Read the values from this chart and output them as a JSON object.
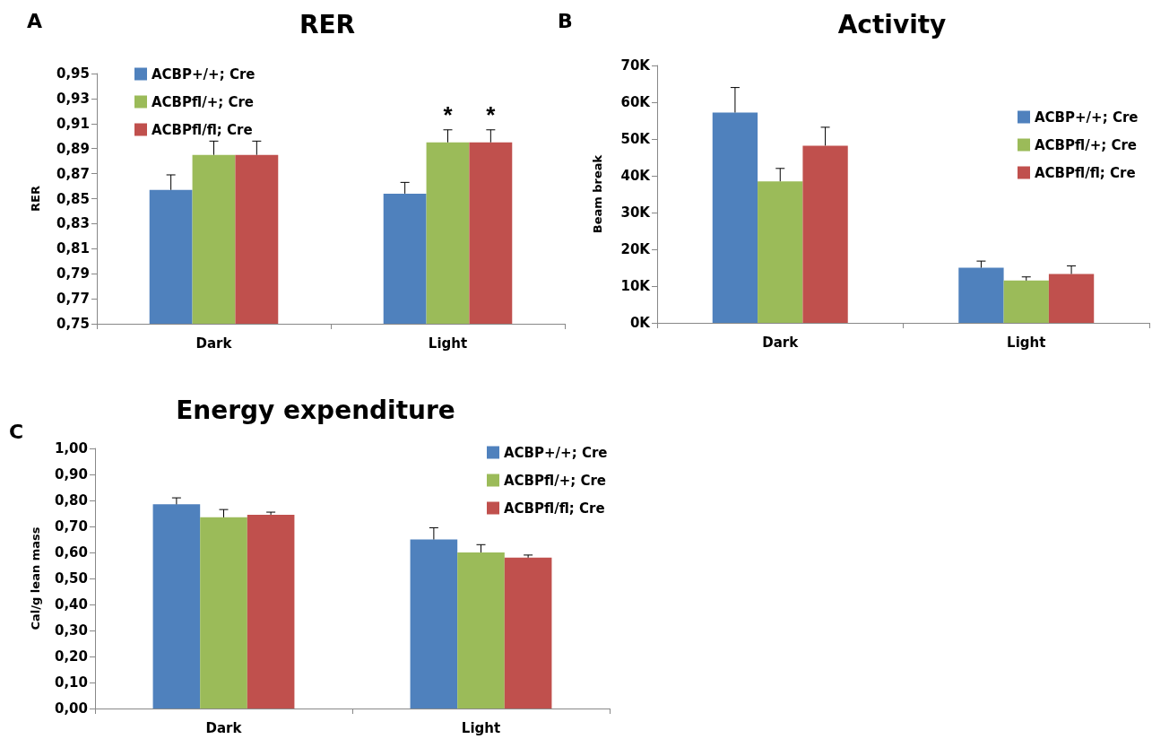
{
  "chart_data": [
    {
      "type": "bar",
      "title": "RER",
      "ylabel": "RER",
      "annotations": [
        "A"
      ],
      "categories": [
        "Dark",
        "Light"
      ],
      "legend": "top left",
      "grid": false,
      "ylim": [
        0.75,
        0.95
      ],
      "yticks": [
        {
          "value": 0.75,
          "label": "0,75"
        },
        {
          "value": 0.77,
          "label": "0,77"
        },
        {
          "value": 0.79,
          "label": "0,79"
        },
        {
          "value": 0.81,
          "label": "0,81"
        },
        {
          "value": 0.83,
          "label": "0,83"
        },
        {
          "value": 0.85,
          "label": "0,85"
        },
        {
          "value": 0.87,
          "label": "0,87"
        },
        {
          "value": 0.89,
          "label": "0,89"
        },
        {
          "value": 0.91,
          "label": "0,91"
        },
        {
          "value": 0.93,
          "label": "0,93"
        },
        {
          "value": 0.95,
          "label": "0,95"
        }
      ],
      "series": [
        {
          "name": "ACBP+/+; Cre",
          "color": "#4f81bd",
          "values": [
            0.857,
            0.854
          ],
          "errors": [
            [
              0.857,
              0.869
            ],
            [
              0.854,
              0.863
            ]
          ]
        },
        {
          "name": "ACBPfl/+; Cre",
          "color": "#9bbb59",
          "values": [
            0.885,
            0.895
          ],
          "errors": [
            [
              0.885,
              0.896
            ],
            [
              0.895,
              0.905
            ]
          ],
          "value_labels": [
            null,
            "*"
          ]
        },
        {
          "name": "ACBPfl/fl; Cre",
          "color": "#c0504d",
          "values": [
            0.885,
            0.895
          ],
          "errors": [
            [
              0.885,
              0.896
            ],
            [
              0.895,
              0.905
            ]
          ],
          "value_labels": [
            null,
            "*"
          ]
        }
      ]
    },
    {
      "type": "bar",
      "title": "Activity",
      "ylabel": "Beam break",
      "annotations": [
        "B"
      ],
      "categories": [
        "Dark",
        "Light"
      ],
      "legend": "right",
      "grid": false,
      "ylim": [
        0,
        70000
      ],
      "yticks": [
        {
          "value": 0,
          "label": "0K"
        },
        {
          "value": 10000,
          "label": "10K"
        },
        {
          "value": 20000,
          "label": "20K"
        },
        {
          "value": 30000,
          "label": "30K"
        },
        {
          "value": 40000,
          "label": "40K"
        },
        {
          "value": 50000,
          "label": "50K"
        },
        {
          "value": 60000,
          "label": "60K"
        },
        {
          "value": 70000,
          "label": "70K"
        }
      ],
      "series": [
        {
          "name": "ACBP+/+; Cre",
          "color": "#4f81bd",
          "values": [
            57200,
            15000
          ],
          "errors": [
            [
              57200,
              64000
            ],
            [
              15000,
              16800
            ]
          ]
        },
        {
          "name": "ACBPfl/+; Cre",
          "color": "#9bbb59",
          "values": [
            38500,
            11500
          ],
          "errors": [
            [
              38500,
              42000
            ],
            [
              11500,
              12500
            ]
          ]
        },
        {
          "name": "ACBPfl/fl; Cre",
          "color": "#c0504d",
          "values": [
            48200,
            13300
          ],
          "errors": [
            [
              48200,
              53200
            ],
            [
              13300,
              15500
            ]
          ]
        }
      ]
    },
    {
      "type": "bar",
      "title": "Energy expenditure",
      "ylabel": "Cal/g lean mass",
      "annotations": [
        "C"
      ],
      "categories": [
        "Dark",
        "Light"
      ],
      "legend": "top right",
      "grid": false,
      "ylim": [
        0,
        1
      ],
      "yticks": [
        {
          "value": 0,
          "label": "0,00"
        },
        {
          "value": 0.1,
          "label": "0,10"
        },
        {
          "value": 0.2,
          "label": "0,20"
        },
        {
          "value": 0.3,
          "label": "0,30"
        },
        {
          "value": 0.4,
          "label": "0,40"
        },
        {
          "value": 0.5,
          "label": "0,50"
        },
        {
          "value": 0.6,
          "label": "0,60"
        },
        {
          "value": 0.7,
          "label": "0,70"
        },
        {
          "value": 0.8,
          "label": "0,80"
        },
        {
          "value": 0.9,
          "label": "0,90"
        },
        {
          "value": 1,
          "label": "1,00"
        }
      ],
      "series": [
        {
          "name": "ACBP+/+; Cre",
          "color": "#4f81bd",
          "values": [
            0.785,
            0.65
          ],
          "errors": [
            [
              0.785,
              0.81
            ],
            [
              0.65,
              0.695
            ]
          ]
        },
        {
          "name": "ACBPfl/+; Cre",
          "color": "#9bbb59",
          "values": [
            0.735,
            0.6
          ],
          "errors": [
            [
              0.735,
              0.765
            ],
            [
              0.6,
              0.63
            ]
          ]
        },
        {
          "name": "ACBPfl/fl; Cre",
          "color": "#c0504d",
          "values": [
            0.745,
            0.58
          ],
          "errors": [
            [
              0.745,
              0.755
            ],
            [
              0.58,
              0.59
            ]
          ]
        }
      ]
    }
  ]
}
